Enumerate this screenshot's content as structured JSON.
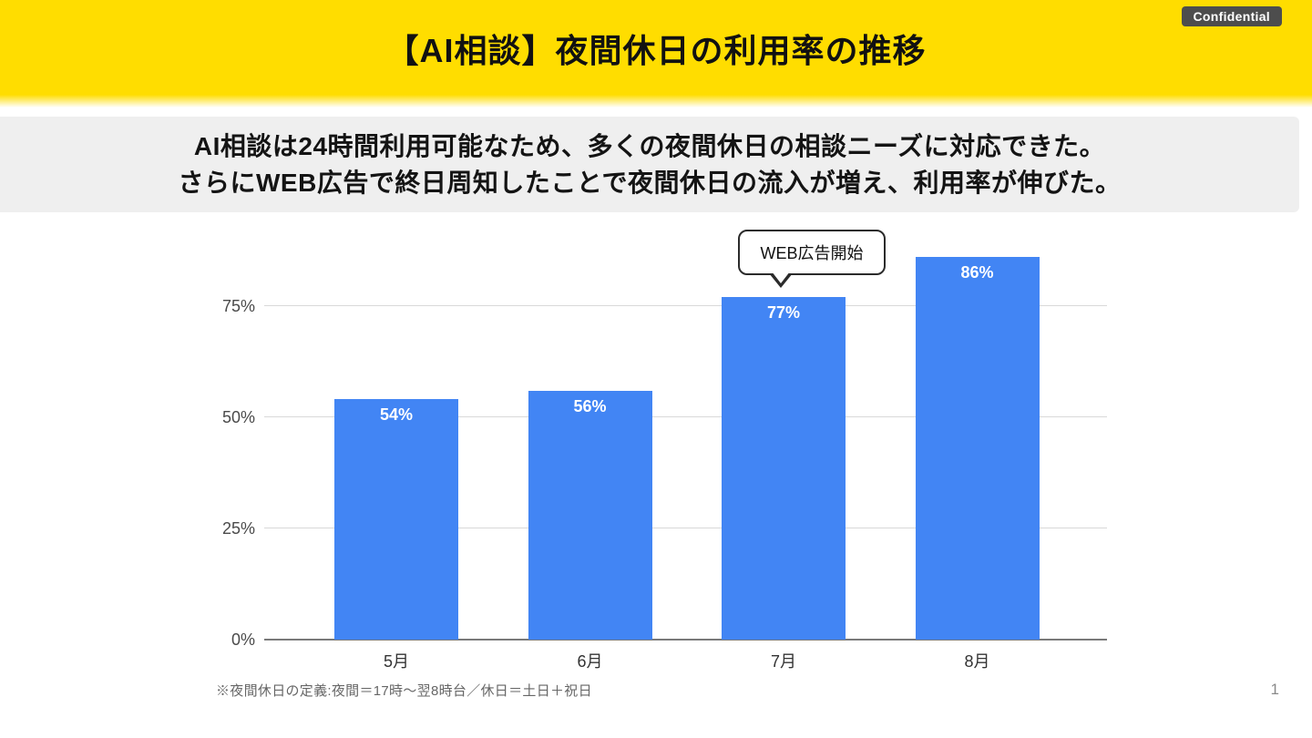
{
  "header": {
    "title": "【AI相談】夜間休日の利用率の推移",
    "badge": "Confidential"
  },
  "summary": {
    "line1": "AI相談は24時間利用可能なため、多くの夜間休日の相談ニーズに対応できた。",
    "line2": "さらにWEB広告で終日周知したことで夜間休日の流入が増え、利用率が伸びた。"
  },
  "chart_data": {
    "type": "bar",
    "categories": [
      "5月",
      "6月",
      "7月",
      "8月"
    ],
    "values": [
      54,
      56,
      77,
      86
    ],
    "value_labels": [
      "54%",
      "56%",
      "77%",
      "86%"
    ],
    "title": "",
    "xlabel": "",
    "ylabel": "",
    "ylim": [
      0,
      100
    ],
    "yticks": [
      {
        "value": 0,
        "label": "0%"
      },
      {
        "value": 25,
        "label": "25%"
      },
      {
        "value": 50,
        "label": "50%"
      },
      {
        "value": 75,
        "label": "75%"
      }
    ],
    "grid": true,
    "legend_position": "none",
    "bar_color": "#4285F4",
    "annotation": {
      "text": "WEB広告開始",
      "target_category": "7月"
    }
  },
  "footnote": "※夜間休日の定義:夜間＝17時～翌8時台／休日＝土日＋祝日",
  "page_number": "1",
  "colors": {
    "header_bg": "#FFDD00",
    "summary_bg": "#EFEFEF",
    "bar": "#4285F4",
    "badge_bg": "#4D4D4D",
    "gridline": "#D9D9D9",
    "baseline": "#7A7A7A"
  }
}
